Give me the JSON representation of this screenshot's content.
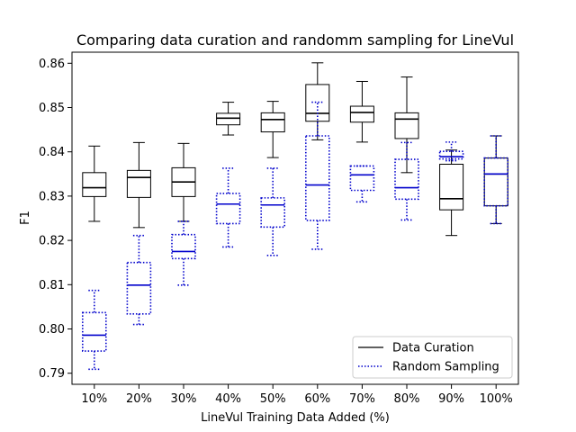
{
  "chart_data": {
    "type": "boxplot",
    "title": "Comparing data curation and randomm sampling for LineVul",
    "xlabel": "LineVul Training Data Added (%)",
    "ylabel": "F1",
    "ylim": [
      0.7875,
      0.8625
    ],
    "yticks": [
      "0.79",
      "0.80",
      "0.81",
      "0.82",
      "0.83",
      "0.84",
      "0.85",
      "0.86"
    ],
    "categories": [
      "10%",
      "20%",
      "30%",
      "40%",
      "50%",
      "60%",
      "70%",
      "80%",
      "90%",
      "100%"
    ],
    "legend_position": "lower-right",
    "series": [
      {
        "name": "Data Curation",
        "color": "#000000",
        "line_style": "solid",
        "boxes": [
          {
            "whislo": 0.8243,
            "q1": 0.8299,
            "med": 0.8319,
            "q3": 0.8353,
            "whishi": 0.8413
          },
          {
            "whislo": 0.8229,
            "q1": 0.8297,
            "med": 0.8342,
            "q3": 0.8358,
            "whishi": 0.8421
          },
          {
            "whislo": 0.8243,
            "q1": 0.8299,
            "med": 0.8332,
            "q3": 0.8364,
            "whishi": 0.8419
          },
          {
            "whislo": 0.8438,
            "q1": 0.8461,
            "med": 0.8476,
            "q3": 0.8487,
            "whishi": 0.8512
          },
          {
            "whislo": 0.8387,
            "q1": 0.8445,
            "med": 0.8473,
            "q3": 0.8488,
            "whishi": 0.8514
          },
          {
            "whislo": 0.8427,
            "q1": 0.8469,
            "med": 0.8487,
            "q3": 0.8552,
            "whishi": 0.8601
          },
          {
            "whislo": 0.8422,
            "q1": 0.8467,
            "med": 0.8489,
            "q3": 0.8503,
            "whishi": 0.8559
          },
          {
            "whislo": 0.8353,
            "q1": 0.843,
            "med": 0.8474,
            "q3": 0.8488,
            "whishi": 0.8569
          },
          {
            "whislo": 0.8211,
            "q1": 0.8269,
            "med": 0.8294,
            "q3": 0.8372,
            "whishi": 0.8404
          },
          {
            "whislo": 0.8238,
            "q1": 0.8278,
            "med": 0.835,
            "q3": 0.8386,
            "whishi": 0.8436
          }
        ]
      },
      {
        "name": "Random Sampling",
        "color": "#0000cc",
        "line_style": "dotted",
        "boxes": [
          {
            "whislo": 0.7909,
            "q1": 0.795,
            "med": 0.7986,
            "q3": 0.8037,
            "whishi": 0.8087
          },
          {
            "whislo": 0.801,
            "q1": 0.8034,
            "med": 0.8099,
            "q3": 0.815,
            "whishi": 0.8211
          },
          {
            "whislo": 0.8099,
            "q1": 0.8159,
            "med": 0.8175,
            "q3": 0.8213,
            "whishi": 0.8243
          },
          {
            "whislo": 0.8185,
            "q1": 0.8238,
            "med": 0.8282,
            "q3": 0.8306,
            "whishi": 0.8363
          },
          {
            "whislo": 0.8166,
            "q1": 0.823,
            "med": 0.828,
            "q3": 0.8296,
            "whishi": 0.8363
          },
          {
            "whislo": 0.818,
            "q1": 0.8245,
            "med": 0.8325,
            "q3": 0.8436,
            "whishi": 0.8512
          },
          {
            "whislo": 0.8287,
            "q1": 0.8313,
            "med": 0.8348,
            "q3": 0.8368,
            "whishi": 0.8368
          },
          {
            "whislo": 0.8246,
            "q1": 0.8293,
            "med": 0.8319,
            "q3": 0.8383,
            "whishi": 0.8421
          },
          {
            "whislo": 0.838,
            "q1": 0.8384,
            "med": 0.8389,
            "q3": 0.8401,
            "whishi": 0.8422
          },
          {
            "whislo": 0.8238,
            "q1": 0.8278,
            "med": 0.835,
            "q3": 0.8386,
            "whishi": 0.8436
          }
        ]
      }
    ]
  }
}
